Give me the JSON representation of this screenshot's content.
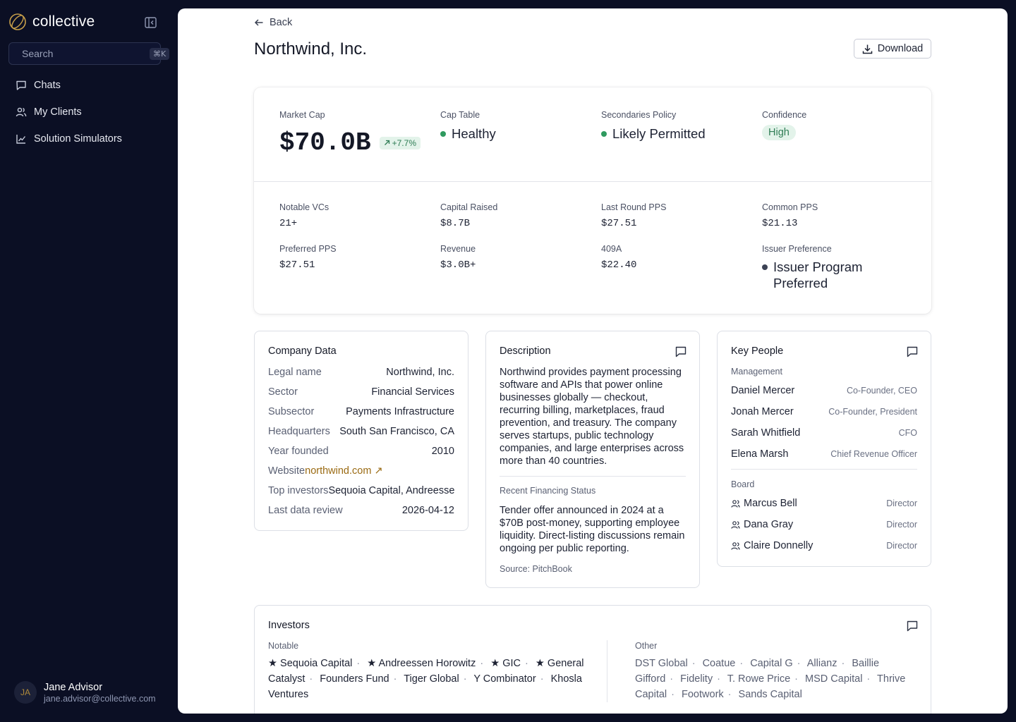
{
  "sidebar": {
    "brand": "collective",
    "search": {
      "placeholder": "Search",
      "shortcut": "⌘K"
    },
    "nav": [
      {
        "label": "Chats",
        "icon": "chat-icon"
      },
      {
        "label": "My Clients",
        "icon": "users-icon"
      },
      {
        "label": "Solution Simulators",
        "icon": "chart-line-icon"
      }
    ],
    "user": {
      "initials": "JA",
      "name": "Jane Advisor",
      "email": "jane.advisor@collective.com"
    }
  },
  "header": {
    "back_label": "Back",
    "title": "Northwind, Inc.",
    "download_label": "Download"
  },
  "summary": {
    "market_cap": {
      "label": "Market Cap",
      "value": "$70.0B",
      "change": "+7.7%"
    },
    "cap_table": {
      "label": "Cap Table",
      "value": "Healthy",
      "color": "#2f9a5f"
    },
    "secondaries": {
      "label": "Secondaries Policy",
      "value": "Likely Permitted",
      "color": "#2f9a5f"
    },
    "confidence": {
      "label": "Confidence",
      "value": "High"
    },
    "metrics": [
      {
        "label": "Notable VCs",
        "value": "21+"
      },
      {
        "label": "Capital Raised",
        "value": "$8.7B"
      },
      {
        "label": "Last Round PPS",
        "value": "$27.51"
      },
      {
        "label": "Common PPS",
        "value": "$21.13"
      },
      {
        "label": "Preferred PPS",
        "value": "$27.51"
      },
      {
        "label": "Revenue",
        "value": "$3.0B+"
      },
      {
        "label": "409A",
        "value": "$22.40"
      }
    ],
    "issuer_preference": {
      "label": "Issuer Preference",
      "value": "Issuer Program Preferred"
    }
  },
  "company_data": {
    "title": "Company Data",
    "rows": [
      {
        "key": "Legal name",
        "value": "Northwind, Inc."
      },
      {
        "key": "Sector",
        "value": "Financial Services"
      },
      {
        "key": "Subsector",
        "value": "Payments Infrastructure"
      },
      {
        "key": "Headquarters",
        "value": "South San Francisco, CA"
      },
      {
        "key": "Year founded",
        "value": "2010"
      },
      {
        "key": "Website",
        "value": "northwind.com ↗"
      },
      {
        "key": "Top investors",
        "value": "Sequoia Capital, Andreesse"
      },
      {
        "key": "Last data review",
        "value": "2026-04-12"
      }
    ]
  },
  "description": {
    "title": "Description",
    "text": "Northwind provides payment processing software and APIs that power online businesses globally — checkout, recurring billing, marketplaces, fraud prevention, and treasury. The company serves startups, public technology companies, and large enterprises across more than 40 countries.",
    "financing_label": "Recent Financing Status",
    "financing_text": "Tender offer announced in 2024 at a $70B post-money, supporting employee liquidity. Direct-listing discussions remain ongoing per public reporting.",
    "source": "Source: PitchBook"
  },
  "key_people": {
    "title": "Key People",
    "management_label": "Management",
    "management": [
      {
        "name": "Daniel Mercer",
        "role": "Co-Founder, CEO"
      },
      {
        "name": "Jonah Mercer",
        "role": "Co-Founder, President"
      },
      {
        "name": "Sarah Whitfield",
        "role": "CFO"
      },
      {
        "name": "Elena Marsh",
        "role": "Chief Revenue Officer"
      }
    ],
    "board_label": "Board",
    "board": [
      {
        "name": "Marcus Bell",
        "role": "Director"
      },
      {
        "name": "Dana Gray",
        "role": "Director"
      },
      {
        "name": "Claire Donnelly",
        "role": "Director"
      }
    ]
  },
  "investors": {
    "title": "Investors",
    "notable_label": "Notable",
    "notable": [
      "★ Sequoia Capital",
      "★ Andreessen Horowitz",
      "★ GIC",
      "★ General Catalyst",
      "Founders Fund",
      "Tiger Global",
      "Y Combinator",
      "Khosla Ventures"
    ],
    "other_label": "Other",
    "other": [
      "DST Global",
      "Coatue",
      "Capital G",
      "Allianz",
      "Baillie Gifford",
      "Fidelity",
      "T. Rowe Price",
      "MSD Capital",
      "Thrive Capital",
      "Footwork",
      "Sands Capital"
    ]
  },
  "colors": {
    "accent_gold": "#b08a3a",
    "positive_green": "#2f9a5f",
    "link": "#9a6a12",
    "sidebar_bg": "#0b0f24"
  }
}
